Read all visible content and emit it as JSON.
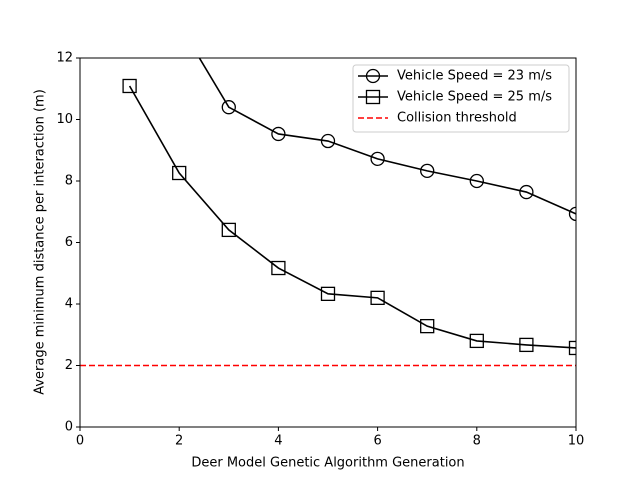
{
  "chart_data": {
    "type": "line",
    "xlabel": "Deer Model Genetic Algorithm Generation",
    "ylabel": "Average minimum distance per interaction (m)",
    "xlim": [
      0,
      10
    ],
    "ylim": [
      0,
      12
    ],
    "xticks": [
      0,
      2,
      4,
      6,
      8,
      10
    ],
    "yticks": [
      0,
      2,
      4,
      6,
      8,
      10,
      12
    ],
    "legend": "upper right",
    "series": [
      {
        "name": "Vehicle Speed = 23 m/s",
        "color": "#000000",
        "marker": "circle",
        "linestyle": "solid",
        "x": [
          2,
          3,
          4,
          5,
          6,
          7,
          8,
          9,
          10
        ],
        "values": [
          13.1,
          10.4,
          9.53,
          9.3,
          8.72,
          8.33,
          8.0,
          7.64,
          6.93
        ]
      },
      {
        "name": "Vehicle Speed = 25 m/s",
        "color": "#000000",
        "marker": "square",
        "linestyle": "solid",
        "x": [
          1,
          2,
          3,
          4,
          5,
          6,
          7,
          8,
          9,
          10
        ],
        "values": [
          11.09,
          8.26,
          6.41,
          5.17,
          4.33,
          4.2,
          3.28,
          2.8,
          2.67,
          2.57
        ]
      },
      {
        "name": "Collision threshold",
        "color": "#ff0000",
        "marker": "none",
        "linestyle": "dashed",
        "x": [
          0,
          10
        ],
        "values": [
          2,
          2
        ]
      }
    ]
  }
}
